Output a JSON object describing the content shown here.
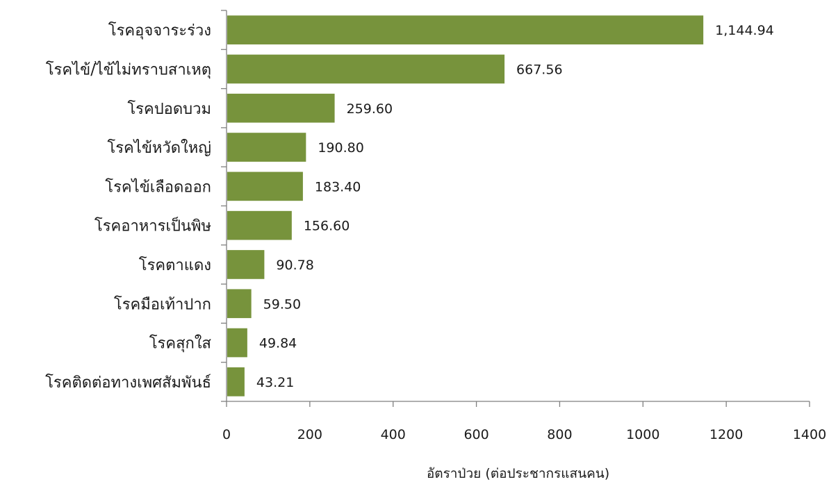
{
  "chart_data": {
    "type": "bar",
    "orientation": "horizontal",
    "categories": [
      "โรคอุจจาระร่วง",
      "โรคไข้/ไข้ไม่ทราบสาเหตุ",
      "โรคปอดบวม",
      "โรคไข้หวัดใหญ่",
      "โรคไข้เลือดออก",
      "โรคอาหารเป็นพิษ",
      "โรคตาแดง",
      "โรคมือเท้าปาก",
      "โรคสุกใส",
      "โรคติดต่อทางเพศสัมพันธ์"
    ],
    "values": [
      1144.94,
      667.56,
      259.6,
      190.8,
      183.4,
      156.6,
      90.78,
      59.5,
      49.84,
      43.21
    ],
    "data_labels": [
      "1,144.94",
      "667.56",
      "259.60",
      "190.80",
      "183.40",
      "156.60",
      "90.78",
      "59.50",
      "49.84",
      "43.21"
    ],
    "xlim": [
      0,
      1400
    ],
    "x_ticks": [
      "0",
      "200",
      "400",
      "600",
      "800",
      "1000",
      "1200",
      "1400"
    ],
    "xlabel": "อัตราป่วย (ต่อประชากรแสนคน)",
    "grid": false,
    "bar_color": "#77933c"
  }
}
